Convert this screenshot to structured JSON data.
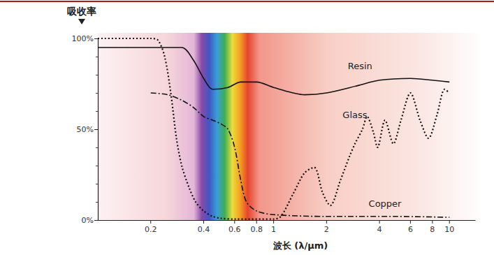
{
  "chart_data": {
    "type": "line",
    "y_label": "吸收率",
    "x_label": "波长 (λ/μm)",
    "log": "x",
    "grid": false,
    "xlim": [
      0.1,
      14
    ],
    "xticks": [
      0.2,
      0.4,
      0.6,
      0.8,
      1,
      2,
      4,
      6,
      8,
      10
    ],
    "ylim": [
      0,
      100
    ],
    "yticks": [
      {
        "value": 0,
        "label": "0%"
      },
      {
        "value": 50,
        "label": "50%"
      },
      {
        "value": 100,
        "label": "100%"
      }
    ],
    "series": [
      {
        "name": "Resin",
        "color": "#111111",
        "line_style": "solid",
        "x": [
          0.1,
          0.3,
          0.35,
          0.4,
          0.45,
          0.55,
          0.65,
          0.8,
          1,
          1.5,
          2,
          3,
          4,
          6,
          8,
          10
        ],
        "values": [
          95,
          95,
          88,
          78,
          72,
          73,
          76,
          76,
          73,
          69,
          70,
          74,
          77,
          78,
          77,
          76
        ]
      },
      {
        "name": "Glass",
        "color": "#111111",
        "line_style": "dotted",
        "x": [
          0.1,
          0.2,
          0.22,
          0.24,
          0.26,
          0.28,
          0.3,
          0.33,
          0.36,
          0.4,
          0.45,
          0.5,
          0.6,
          1,
          1.1,
          1.3,
          1.5,
          1.7,
          1.9,
          2.1,
          2.4,
          2.7,
          2.9,
          3.2,
          3.4,
          3.7,
          3.9,
          4.3,
          4.8,
          5.3,
          6,
          6.8,
          7.6,
          8.5,
          9.4,
          10
        ],
        "values": [
          100,
          100,
          99,
          90,
          70,
          45,
          30,
          18,
          10,
          5,
          2,
          1,
          0.5,
          0.5,
          2,
          15,
          26,
          29,
          15,
          8,
          22,
          35,
          42,
          50,
          57,
          48,
          40,
          55,
          42,
          55,
          70,
          55,
          45,
          58,
          72,
          70
        ]
      },
      {
        "name": "Copper",
        "color": "#111111",
        "line_style": "dashdot",
        "x": [
          0.2,
          0.25,
          0.3,
          0.35,
          0.4,
          0.45,
          0.5,
          0.55,
          0.6,
          0.65,
          0.7,
          0.8,
          1,
          2,
          5,
          10
        ],
        "values": [
          70,
          69,
          66,
          62,
          57,
          55,
          53,
          50,
          40,
          22,
          10,
          5,
          3,
          2,
          2,
          1.5
        ]
      }
    ],
    "annotations": [
      {
        "text": "Resin",
        "x": 3.1,
        "y": 85
      },
      {
        "text": "Glass",
        "x": 2.9,
        "y": 58
      },
      {
        "text": "Copper",
        "x": 4.3,
        "y": 9
      }
    ]
  }
}
